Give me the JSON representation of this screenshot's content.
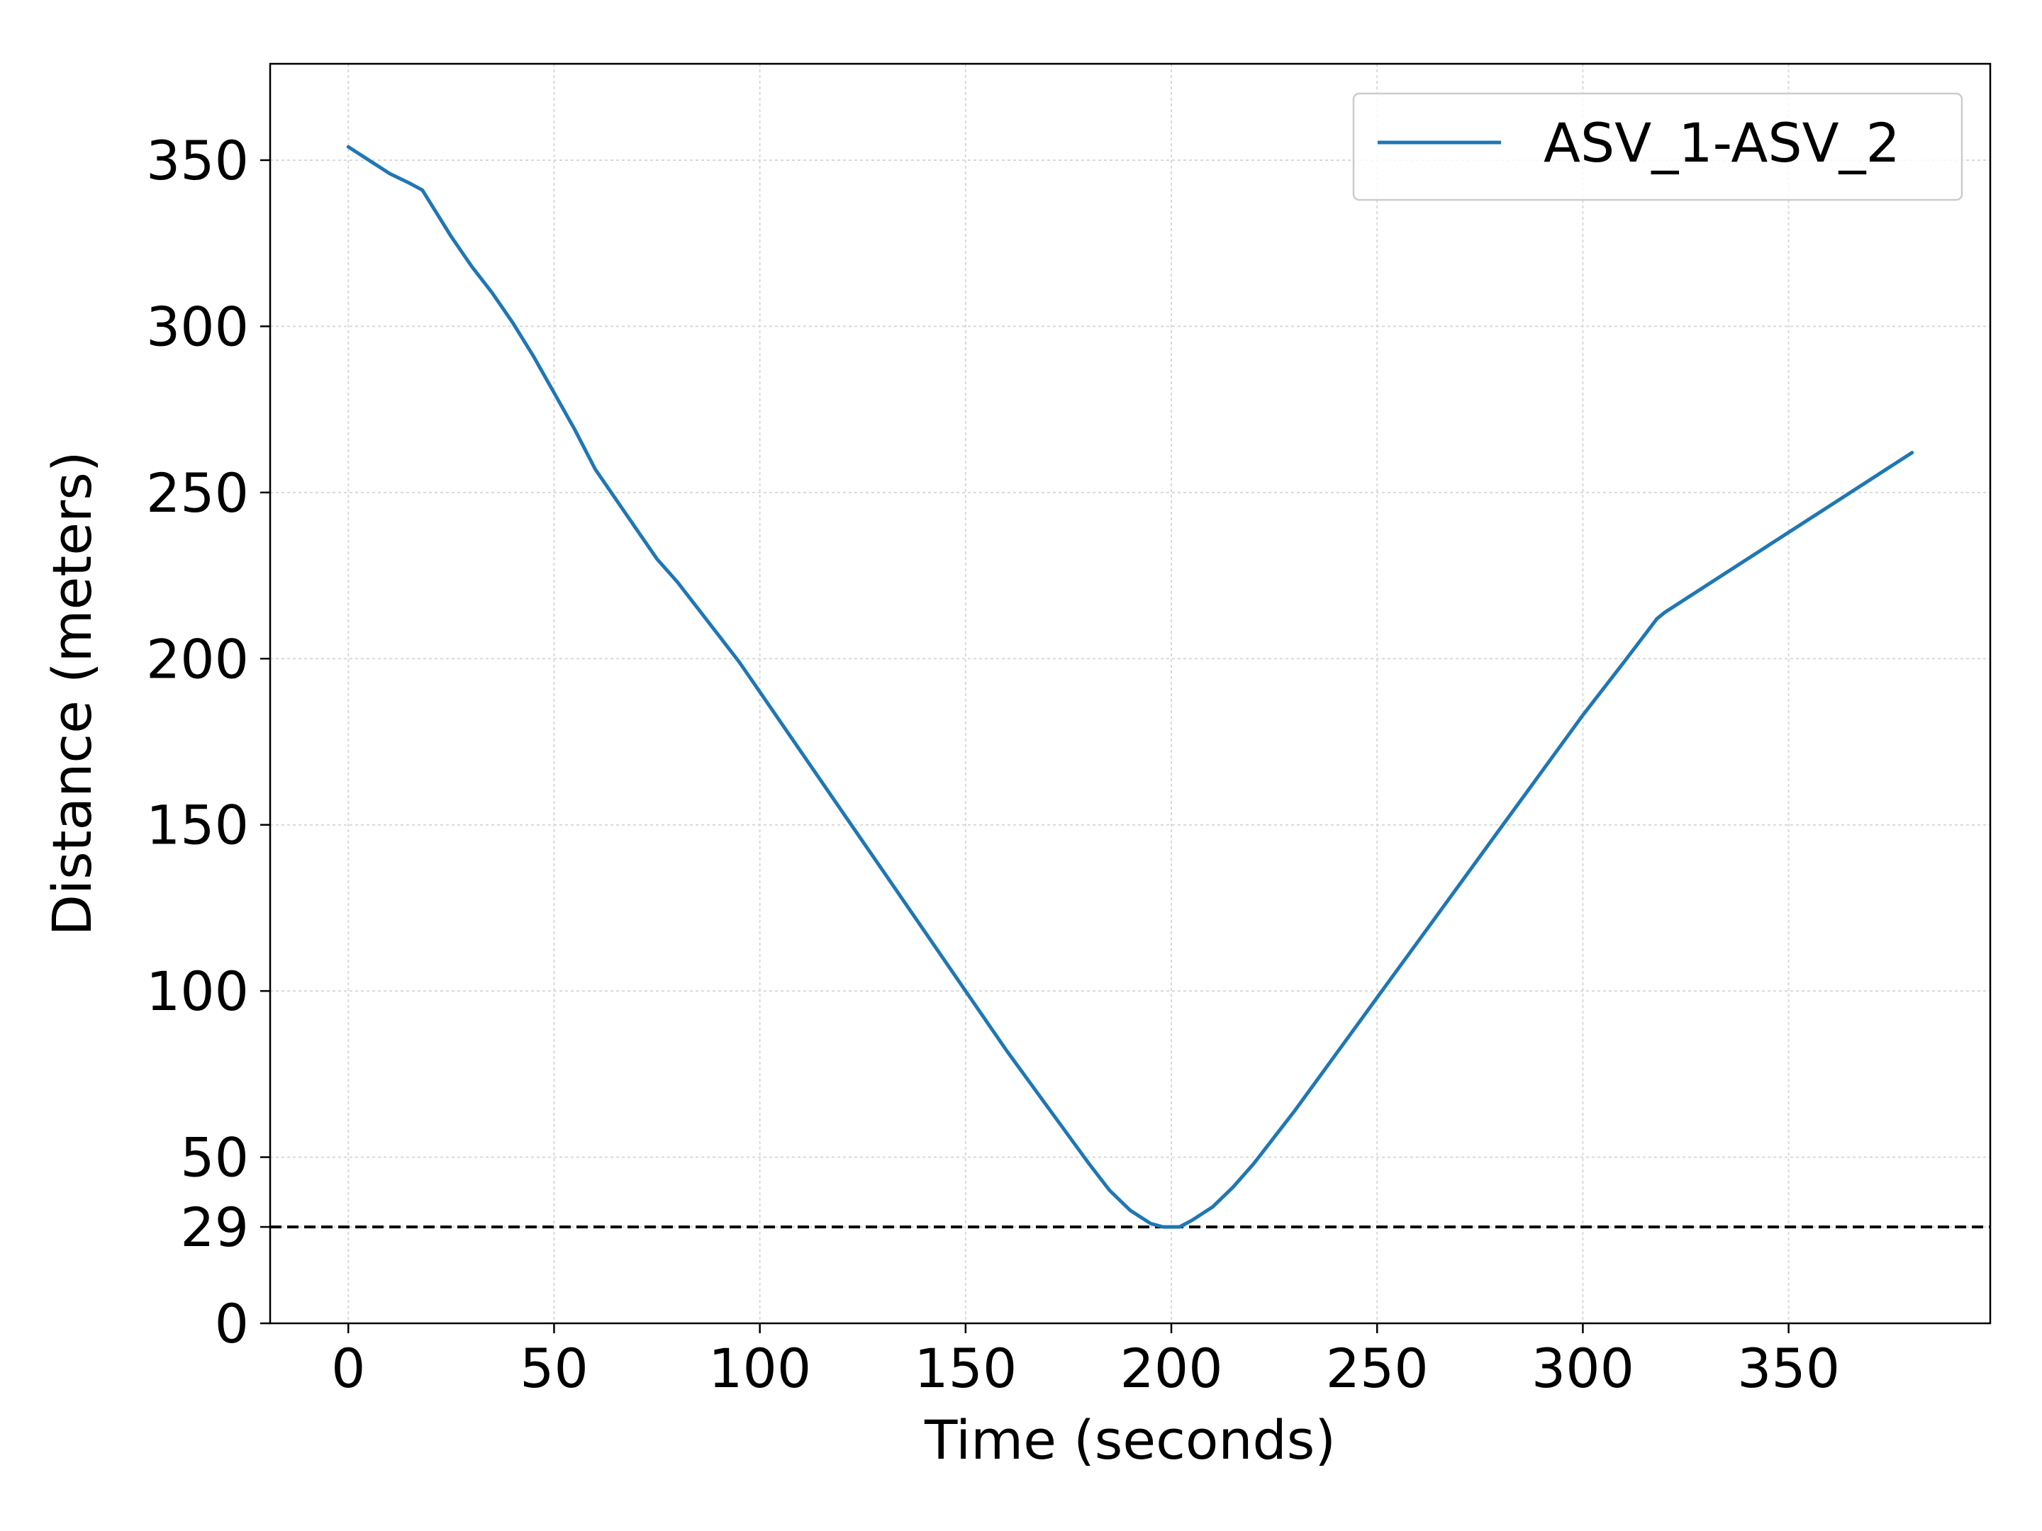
{
  "chart_data": {
    "type": "line",
    "xlabel": "Time (seconds)",
    "ylabel": "Distance (meters)",
    "xlim": [
      -19,
      399
    ],
    "ylim": [
      0,
      379
    ],
    "x_ticks": [
      0,
      50,
      100,
      150,
      200,
      250,
      300,
      350
    ],
    "y_ticks": [
      0,
      29,
      50,
      100,
      150,
      200,
      250,
      300,
      350
    ],
    "grid": true,
    "legend_position": "top-right",
    "colors": {
      "series": "#1f77b4",
      "threshold": "#000000",
      "grid": "#d9d9d9"
    },
    "threshold_line": {
      "y": 29,
      "style": "dashed"
    },
    "series": [
      {
        "name": "ASV_1-ASV_2",
        "x": [
          0,
          5,
          10,
          15,
          18,
          20,
          25,
          30,
          35,
          40,
          45,
          50,
          55,
          60,
          65,
          70,
          75,
          80,
          85,
          90,
          95,
          100,
          110,
          120,
          130,
          140,
          150,
          160,
          170,
          180,
          185,
          190,
          195,
          198,
          200,
          202,
          205,
          210,
          215,
          220,
          230,
          240,
          250,
          260,
          270,
          280,
          290,
          300,
          310,
          318,
          320,
          330,
          340,
          350,
          360,
          370,
          380
        ],
        "y": [
          354,
          350,
          346,
          343,
          341,
          337,
          327,
          318,
          310,
          301,
          291,
          280,
          269,
          257,
          248,
          239,
          230,
          223,
          215,
          207,
          199,
          190,
          172,
          154,
          136,
          118,
          100,
          82,
          65,
          48,
          40,
          34,
          30,
          29,
          29,
          29,
          31,
          35,
          41,
          48,
          64,
          81,
          98,
          115,
          132,
          149,
          166,
          183,
          199,
          212,
          214,
          222,
          230,
          238,
          246,
          254,
          262
        ]
      }
    ]
  }
}
